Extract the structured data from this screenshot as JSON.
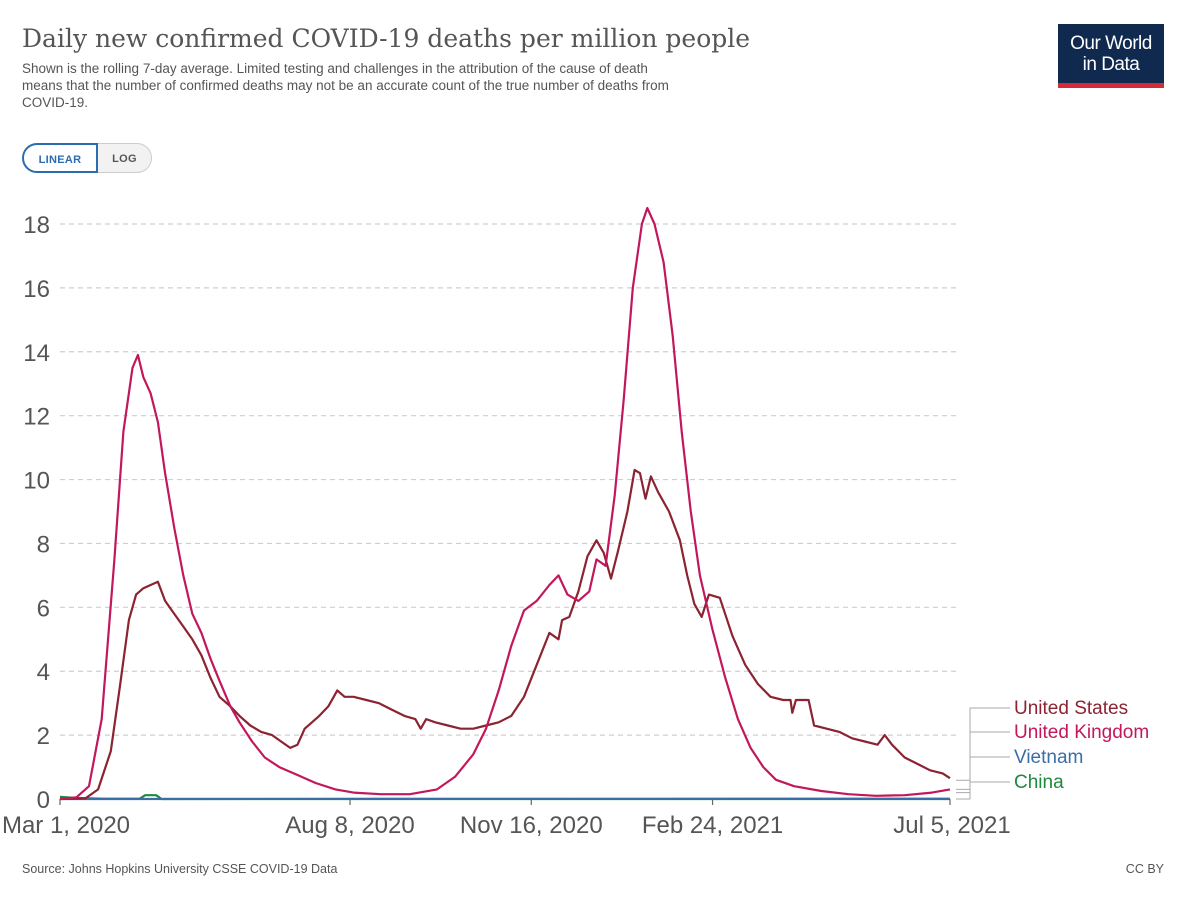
{
  "title": "Daily new confirmed COVID-19 deaths per million people",
  "subtitle": "Shown is the rolling 7-day average. Limited testing and challenges in the attribution of the cause of death means that the number of confirmed deaths may not be an accurate count of the true number of deaths from COVID-19.",
  "logo": {
    "line1": "Our World",
    "line2": "in Data",
    "bg_color": "#0f2a4e",
    "accent_color": "#d42b3a"
  },
  "scale_toggle": {
    "linear_label": "LINEAR",
    "log_label": "LOG",
    "selected": "LINEAR"
  },
  "source": "Source: Johns Hopkins University CSSE COVID-19 Data",
  "license": "CC BY",
  "chart_data": {
    "type": "line",
    "title": "Daily new confirmed COVID-19 deaths per million people",
    "xlabel": "",
    "ylabel": "",
    "x_range": [
      "2020-03-01",
      "2021-07-05"
    ],
    "ylim": [
      0,
      18
    ],
    "y_ticks": [
      0,
      2,
      4,
      6,
      8,
      10,
      12,
      14,
      16,
      18
    ],
    "y_tick_labels": [
      "0",
      "2",
      "4",
      "6",
      "8",
      "10",
      "12",
      "14",
      "16",
      "18"
    ],
    "x_ticks": [
      "2020-03-01",
      "2020-08-08",
      "2020-11-16",
      "2021-02-24",
      "2021-07-05"
    ],
    "x_tick_labels": [
      "Mar 1, 2020",
      "Aug 8, 2020",
      "Nov 16, 2020",
      "Feb 24, 2021",
      "Jul 5, 2021"
    ],
    "grid": "horizontal dashed",
    "legend": "right, end-of-line labels",
    "series": [
      {
        "name": "United States",
        "color": "#8b2332",
        "points": [
          [
            "2020-03-01",
            0
          ],
          [
            "2020-03-15",
            0.02
          ],
          [
            "2020-03-22",
            0.3
          ],
          [
            "2020-03-29",
            1.5
          ],
          [
            "2020-04-03",
            3.5
          ],
          [
            "2020-04-08",
            5.6
          ],
          [
            "2020-04-12",
            6.4
          ],
          [
            "2020-04-16",
            6.6
          ],
          [
            "2020-04-20",
            6.7
          ],
          [
            "2020-04-24",
            6.8
          ],
          [
            "2020-04-28",
            6.2
          ],
          [
            "2020-05-03",
            5.8
          ],
          [
            "2020-05-08",
            5.4
          ],
          [
            "2020-05-13",
            5.0
          ],
          [
            "2020-05-18",
            4.5
          ],
          [
            "2020-05-23",
            3.8
          ],
          [
            "2020-05-28",
            3.2
          ],
          [
            "2020-06-03",
            2.9
          ],
          [
            "2020-06-08",
            2.6
          ],
          [
            "2020-06-14",
            2.3
          ],
          [
            "2020-06-20",
            2.1
          ],
          [
            "2020-06-26",
            2.0
          ],
          [
            "2020-07-01",
            1.8
          ],
          [
            "2020-07-06",
            1.6
          ],
          [
            "2020-07-10",
            1.7
          ],
          [
            "2020-07-14",
            2.2
          ],
          [
            "2020-07-18",
            2.4
          ],
          [
            "2020-07-22",
            2.6
          ],
          [
            "2020-07-27",
            2.9
          ],
          [
            "2020-08-01",
            3.4
          ],
          [
            "2020-08-05",
            3.2
          ],
          [
            "2020-08-10",
            3.2
          ],
          [
            "2020-08-17",
            3.1
          ],
          [
            "2020-08-24",
            3.0
          ],
          [
            "2020-08-31",
            2.8
          ],
          [
            "2020-09-07",
            2.6
          ],
          [
            "2020-09-13",
            2.5
          ],
          [
            "2020-09-16",
            2.2
          ],
          [
            "2020-09-19",
            2.5
          ],
          [
            "2020-09-24",
            2.4
          ],
          [
            "2020-10-01",
            2.3
          ],
          [
            "2020-10-08",
            2.2
          ],
          [
            "2020-10-15",
            2.2
          ],
          [
            "2020-10-22",
            2.3
          ],
          [
            "2020-10-29",
            2.4
          ],
          [
            "2020-11-05",
            2.6
          ],
          [
            "2020-11-12",
            3.2
          ],
          [
            "2020-11-19",
            4.2
          ],
          [
            "2020-11-26",
            5.2
          ],
          [
            "2020-12-01",
            5.0
          ],
          [
            "2020-12-03",
            5.6
          ],
          [
            "2020-12-07",
            5.7
          ],
          [
            "2020-12-12",
            6.5
          ],
          [
            "2020-12-17",
            7.6
          ],
          [
            "2020-12-22",
            8.1
          ],
          [
            "2020-12-26",
            7.7
          ],
          [
            "2020-12-30",
            6.9
          ],
          [
            "2021-01-03",
            7.8
          ],
          [
            "2021-01-08",
            9.0
          ],
          [
            "2021-01-12",
            10.3
          ],
          [
            "2021-01-15",
            10.2
          ],
          [
            "2021-01-18",
            9.4
          ],
          [
            "2021-01-21",
            10.1
          ],
          [
            "2021-01-25",
            9.6
          ],
          [
            "2021-01-31",
            9.0
          ],
          [
            "2021-02-06",
            8.1
          ],
          [
            "2021-02-10",
            7.0
          ],
          [
            "2021-02-14",
            6.1
          ],
          [
            "2021-02-18",
            5.7
          ],
          [
            "2021-02-22",
            6.4
          ],
          [
            "2021-02-28",
            6.3
          ],
          [
            "2021-03-07",
            5.1
          ],
          [
            "2021-03-14",
            4.2
          ],
          [
            "2021-03-21",
            3.6
          ],
          [
            "2021-03-28",
            3.2
          ],
          [
            "2021-04-04",
            3.1
          ],
          [
            "2021-04-08",
            3.1
          ],
          [
            "2021-04-09",
            2.7
          ],
          [
            "2021-04-11",
            3.1
          ],
          [
            "2021-04-18",
            3.1
          ],
          [
            "2021-04-21",
            2.3
          ],
          [
            "2021-04-28",
            2.2
          ],
          [
            "2021-05-05",
            2.1
          ],
          [
            "2021-05-12",
            1.9
          ],
          [
            "2021-05-19",
            1.8
          ],
          [
            "2021-05-26",
            1.7
          ],
          [
            "2021-05-30",
            2.0
          ],
          [
            "2021-06-03",
            1.7
          ],
          [
            "2021-06-10",
            1.3
          ],
          [
            "2021-06-17",
            1.1
          ],
          [
            "2021-06-24",
            0.9
          ],
          [
            "2021-07-01",
            0.8
          ],
          [
            "2021-07-05",
            0.65
          ]
        ]
      },
      {
        "name": "United Kingdom",
        "color": "#c2185b",
        "points": [
          [
            "2020-03-01",
            0
          ],
          [
            "2020-03-10",
            0.05
          ],
          [
            "2020-03-17",
            0.4
          ],
          [
            "2020-03-24",
            2.5
          ],
          [
            "2020-03-31",
            7.5
          ],
          [
            "2020-04-05",
            11.5
          ],
          [
            "2020-04-10",
            13.5
          ],
          [
            "2020-04-13",
            13.9
          ],
          [
            "2020-04-16",
            13.2
          ],
          [
            "2020-04-20",
            12.7
          ],
          [
            "2020-04-24",
            11.8
          ],
          [
            "2020-04-28",
            10.2
          ],
          [
            "2020-05-03",
            8.5
          ],
          [
            "2020-05-08",
            7.0
          ],
          [
            "2020-05-13",
            5.8
          ],
          [
            "2020-05-18",
            5.2
          ],
          [
            "2020-05-23",
            4.4
          ],
          [
            "2020-05-28",
            3.7
          ],
          [
            "2020-06-03",
            2.9
          ],
          [
            "2020-06-08",
            2.4
          ],
          [
            "2020-06-15",
            1.8
          ],
          [
            "2020-06-22",
            1.3
          ],
          [
            "2020-06-30",
            1.0
          ],
          [
            "2020-07-10",
            0.75
          ],
          [
            "2020-07-20",
            0.5
          ],
          [
            "2020-07-31",
            0.3
          ],
          [
            "2020-08-10",
            0.2
          ],
          [
            "2020-08-25",
            0.15
          ],
          [
            "2020-09-10",
            0.15
          ],
          [
            "2020-09-25",
            0.3
          ],
          [
            "2020-10-05",
            0.7
          ],
          [
            "2020-10-15",
            1.4
          ],
          [
            "2020-10-22",
            2.2
          ],
          [
            "2020-10-29",
            3.4
          ],
          [
            "2020-11-05",
            4.8
          ],
          [
            "2020-11-12",
            5.9
          ],
          [
            "2020-11-19",
            6.2
          ],
          [
            "2020-11-26",
            6.7
          ],
          [
            "2020-12-01",
            7.0
          ],
          [
            "2020-12-06",
            6.4
          ],
          [
            "2020-12-12",
            6.2
          ],
          [
            "2020-12-18",
            6.5
          ],
          [
            "2020-12-22",
            7.5
          ],
          [
            "2020-12-27",
            7.3
          ],
          [
            "2021-01-01",
            9.5
          ],
          [
            "2021-01-06",
            12.5
          ],
          [
            "2021-01-11",
            16.0
          ],
          [
            "2021-01-16",
            18.0
          ],
          [
            "2021-01-19",
            18.5
          ],
          [
            "2021-01-23",
            18.0
          ],
          [
            "2021-01-28",
            16.8
          ],
          [
            "2021-02-02",
            14.5
          ],
          [
            "2021-02-07",
            11.5
          ],
          [
            "2021-02-12",
            9.0
          ],
          [
            "2021-02-17",
            7.0
          ],
          [
            "2021-02-24",
            5.3
          ],
          [
            "2021-03-03",
            3.8
          ],
          [
            "2021-03-10",
            2.5
          ],
          [
            "2021-03-17",
            1.6
          ],
          [
            "2021-03-24",
            1.0
          ],
          [
            "2021-03-31",
            0.6
          ],
          [
            "2021-04-10",
            0.4
          ],
          [
            "2021-04-25",
            0.25
          ],
          [
            "2021-05-10",
            0.15
          ],
          [
            "2021-05-25",
            0.1
          ],
          [
            "2021-06-10",
            0.12
          ],
          [
            "2021-06-25",
            0.2
          ],
          [
            "2021-07-05",
            0.3
          ]
        ]
      },
      {
        "name": "Vietnam",
        "color": "#3a6ea5",
        "points": [
          [
            "2020-03-01",
            0
          ],
          [
            "2021-07-05",
            0.01
          ]
        ]
      },
      {
        "name": "China",
        "color": "#1e8a3c",
        "points": [
          [
            "2020-03-01",
            0.07
          ],
          [
            "2020-03-10",
            0.03
          ],
          [
            "2020-03-25",
            0.01
          ],
          [
            "2020-04-14",
            0.01
          ],
          [
            "2020-04-17",
            0.12
          ],
          [
            "2020-04-23",
            0.12
          ],
          [
            "2020-04-26",
            0.0
          ],
          [
            "2021-07-05",
            0.0
          ]
        ]
      }
    ]
  }
}
